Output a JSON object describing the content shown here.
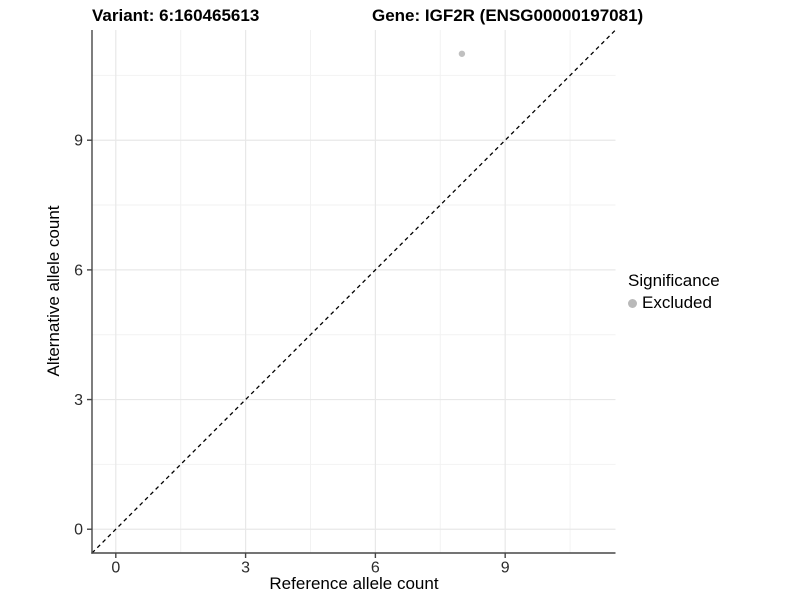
{
  "titles": {
    "variant": "Variant: 6:160465613",
    "gene": "Gene: IGF2R (ENSG00000197081)"
  },
  "legend": {
    "title": "Significance",
    "entries": [
      {
        "label": "Excluded",
        "color": "#b9b9b9"
      }
    ]
  },
  "colors": {
    "background": "#ffffff",
    "axis_line": "#464646",
    "grid_major": "#e8e8e8",
    "grid_minor": "#f2f2f2",
    "tick_label": "#2b2b2b",
    "reference_line": "#000000",
    "point": "#c0c0c0"
  },
  "chart_data": {
    "type": "scatter",
    "title": "Variant: 6:160465613   Gene: IGF2R (ENSG00000197081)",
    "xlabel": "Reference allele count",
    "ylabel": "Alternative allele count",
    "xlim": [
      -0.55,
      11.55
    ],
    "ylim": [
      -0.55,
      11.55
    ],
    "x_ticks": [
      0,
      3,
      6,
      9
    ],
    "y_ticks": [
      0,
      3,
      6,
      9
    ],
    "x_minor_ticks": [
      1.5,
      4.5,
      7.5,
      10.5
    ],
    "y_minor_ticks": [
      1.5,
      4.5,
      7.5,
      10.5
    ],
    "grid": true,
    "legend_position": "right",
    "reference_line": {
      "style": "dashed",
      "from": [
        -0.55,
        -0.55
      ],
      "to": [
        11.55,
        11.55
      ]
    },
    "series": [
      {
        "name": "Excluded",
        "color": "#c0c0c0",
        "points": [
          {
            "x": 8,
            "y": 11
          }
        ]
      }
    ]
  }
}
